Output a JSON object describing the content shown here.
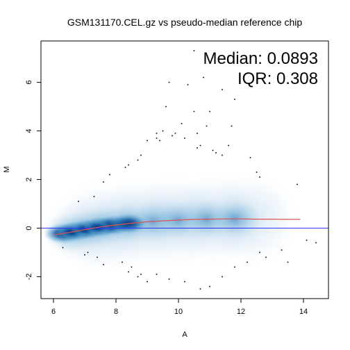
{
  "chart_data": {
    "type": "scatter",
    "title": "GSM131170.CEL.gz vs pseudo-median reference chip",
    "xlabel": "A",
    "ylabel": "M",
    "xlim": [
      5.6,
      14.8
    ],
    "ylim": [
      -2.9,
      7.7
    ],
    "x_ticks": [
      6,
      8,
      10,
      12,
      14
    ],
    "y_ticks": [
      -2,
      0,
      2,
      4,
      6
    ],
    "annotations": {
      "median": "Median: 0.0893",
      "iqr": "IQR: 0.308"
    },
    "reference_line": {
      "y": 0,
      "color": "#3333ff"
    },
    "loess_curve": {
      "color": "#e05555",
      "x": [
        6.0,
        6.5,
        7.0,
        7.5,
        8.0,
        8.5,
        9.0,
        9.5,
        10.0,
        10.5,
        11.0,
        11.5,
        12.0,
        12.5,
        13.0,
        13.5,
        13.9
      ],
      "y": [
        -0.28,
        -0.18,
        -0.06,
        0.05,
        0.13,
        0.2,
        0.26,
        0.3,
        0.33,
        0.36,
        0.37,
        0.38,
        0.38,
        0.37,
        0.37,
        0.36,
        0.36
      ]
    },
    "density_color": "#08519c",
    "outlier_points": {
      "x": [
        10.5,
        10.8,
        9.7,
        10.3,
        11.4,
        11.8,
        10.5,
        9.6,
        10.1,
        9.5,
        11.7,
        9.3,
        11.0,
        10.9,
        9.0,
        9.8,
        10.6,
        9.9,
        10.2,
        9.4,
        11.6,
        10.6,
        11.1,
        9.3,
        10.7,
        11.2,
        8.8,
        11.4,
        12.3,
        8.7,
        8.3,
        8.4,
        12.5,
        12.6,
        13.8,
        7.8,
        7.6,
        7.3,
        6.8,
        8.2,
        8.5,
        8.4,
        8.7,
        9.0,
        9.3,
        9.7,
        10.2,
        11.0,
        11.4,
        11.8,
        12.2,
        12.8,
        13.3,
        14.1,
        14.4,
        7.0,
        7.4,
        7.6,
        8.8,
        7.1,
        13.5,
        10.7,
        12.6,
        6.3
      ],
      "y": [
        7.3,
        6.2,
        6.0,
        5.9,
        5.7,
        5.3,
        4.8,
        5.0,
        4.3,
        4.0,
        4.2,
        3.9,
        4.8,
        4.2,
        3.6,
        3.8,
        3.9,
        3.9,
        3.7,
        3.6,
        3.4,
        3.3,
        3.2,
        3.7,
        3.4,
        3.1,
        3.0,
        3.0,
        2.9,
        2.8,
        2.5,
        2.6,
        2.3,
        2.1,
        1.8,
        2.2,
        1.9,
        1.3,
        1.1,
        -1.4,
        -1.6,
        -1.8,
        -2.0,
        -2.2,
        -1.9,
        -2.1,
        -2.2,
        -2.4,
        -2.0,
        -1.6,
        -1.4,
        -1.2,
        -0.9,
        -0.5,
        -0.6,
        -1.1,
        -1.2,
        -1.5,
        -1.9,
        -1.0,
        -1.4,
        -2.5,
        -1.0,
        -0.8
      ]
    }
  }
}
